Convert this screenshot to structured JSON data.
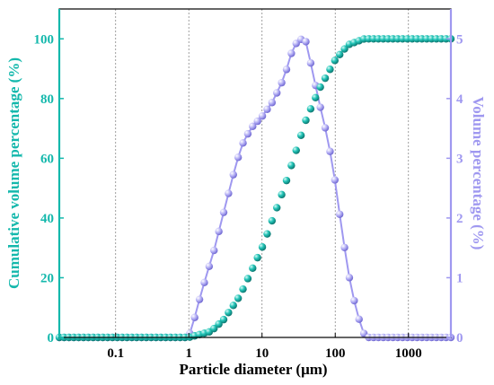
{
  "chart_data": {
    "type": "scatter",
    "xlabel": "Particle diameter (μm)",
    "ylabel_left": "Cumulative volume percentage (%)",
    "ylabel_right": "Volume percentage  (%)",
    "x_scale": "log",
    "xlim": [
      0.017,
      3800
    ],
    "ylim_left": [
      0,
      110
    ],
    "ylim_right": [
      0,
      5.5
    ],
    "x_ticks": [
      0.1,
      1,
      10,
      100,
      1000
    ],
    "x_tick_labels": [
      "0.1",
      "1",
      "10",
      "100",
      "1000"
    ],
    "y_left_ticks": [
      0,
      20,
      40,
      60,
      80,
      100
    ],
    "y_left_tick_labels": [
      "0",
      "20",
      "40",
      "60",
      "80",
      "100"
    ],
    "y_right_ticks": [
      0,
      1,
      2,
      3,
      4,
      5
    ],
    "y_right_tick_labels": [
      "0",
      "1",
      "2",
      "3",
      "4",
      "5"
    ],
    "grid": "vertical dotted at decades",
    "colors": {
      "cumulative": "#14b8ac",
      "volume": "#9f98f0",
      "left_axis": "#14b8ac",
      "right_axis": "#9f98f0"
    },
    "series": [
      {
        "axis": "left",
        "color": "#14b8ac",
        "marker": "sphere",
        "points": [
          [
            0.01,
            0
          ],
          [
            1,
            0
          ],
          [
            2,
            2
          ],
          [
            3,
            6
          ],
          [
            5,
            14
          ],
          [
            10,
            30
          ],
          [
            20,
            50
          ],
          [
            40,
            73
          ],
          [
            60,
            83
          ],
          [
            100,
            93
          ],
          [
            150,
            98
          ],
          [
            250,
            100
          ],
          [
            400,
            100
          ],
          [
            3800,
            100
          ]
        ]
      },
      {
        "axis": "right",
        "color": "#9f98f0",
        "marker": "sphere",
        "line": true,
        "points": [
          [
            0.01,
            0
          ],
          [
            0.98,
            0
          ],
          [
            1.1,
            0.15
          ],
          [
            1.3,
            0.5
          ],
          [
            1.7,
            1.0
          ],
          [
            2.2,
            1.45
          ],
          [
            3,
            2.1
          ],
          [
            4,
            2.7
          ],
          [
            5.2,
            3.2
          ],
          [
            7,
            3.5
          ],
          [
            10,
            3.7
          ],
          [
            14,
            3.95
          ],
          [
            20,
            4.35
          ],
          [
            25,
            4.75
          ],
          [
            30,
            4.95
          ],
          [
            35,
            5.0
          ],
          [
            40,
            4.95
          ],
          [
            50,
            4.4
          ],
          [
            60,
            3.95
          ],
          [
            80,
            3.3
          ],
          [
            100,
            2.6
          ],
          [
            120,
            1.9
          ],
          [
            150,
            1.1
          ],
          [
            190,
            0.5
          ],
          [
            230,
            0.15
          ],
          [
            260,
            0
          ],
          [
            3800,
            0
          ]
        ]
      }
    ]
  }
}
